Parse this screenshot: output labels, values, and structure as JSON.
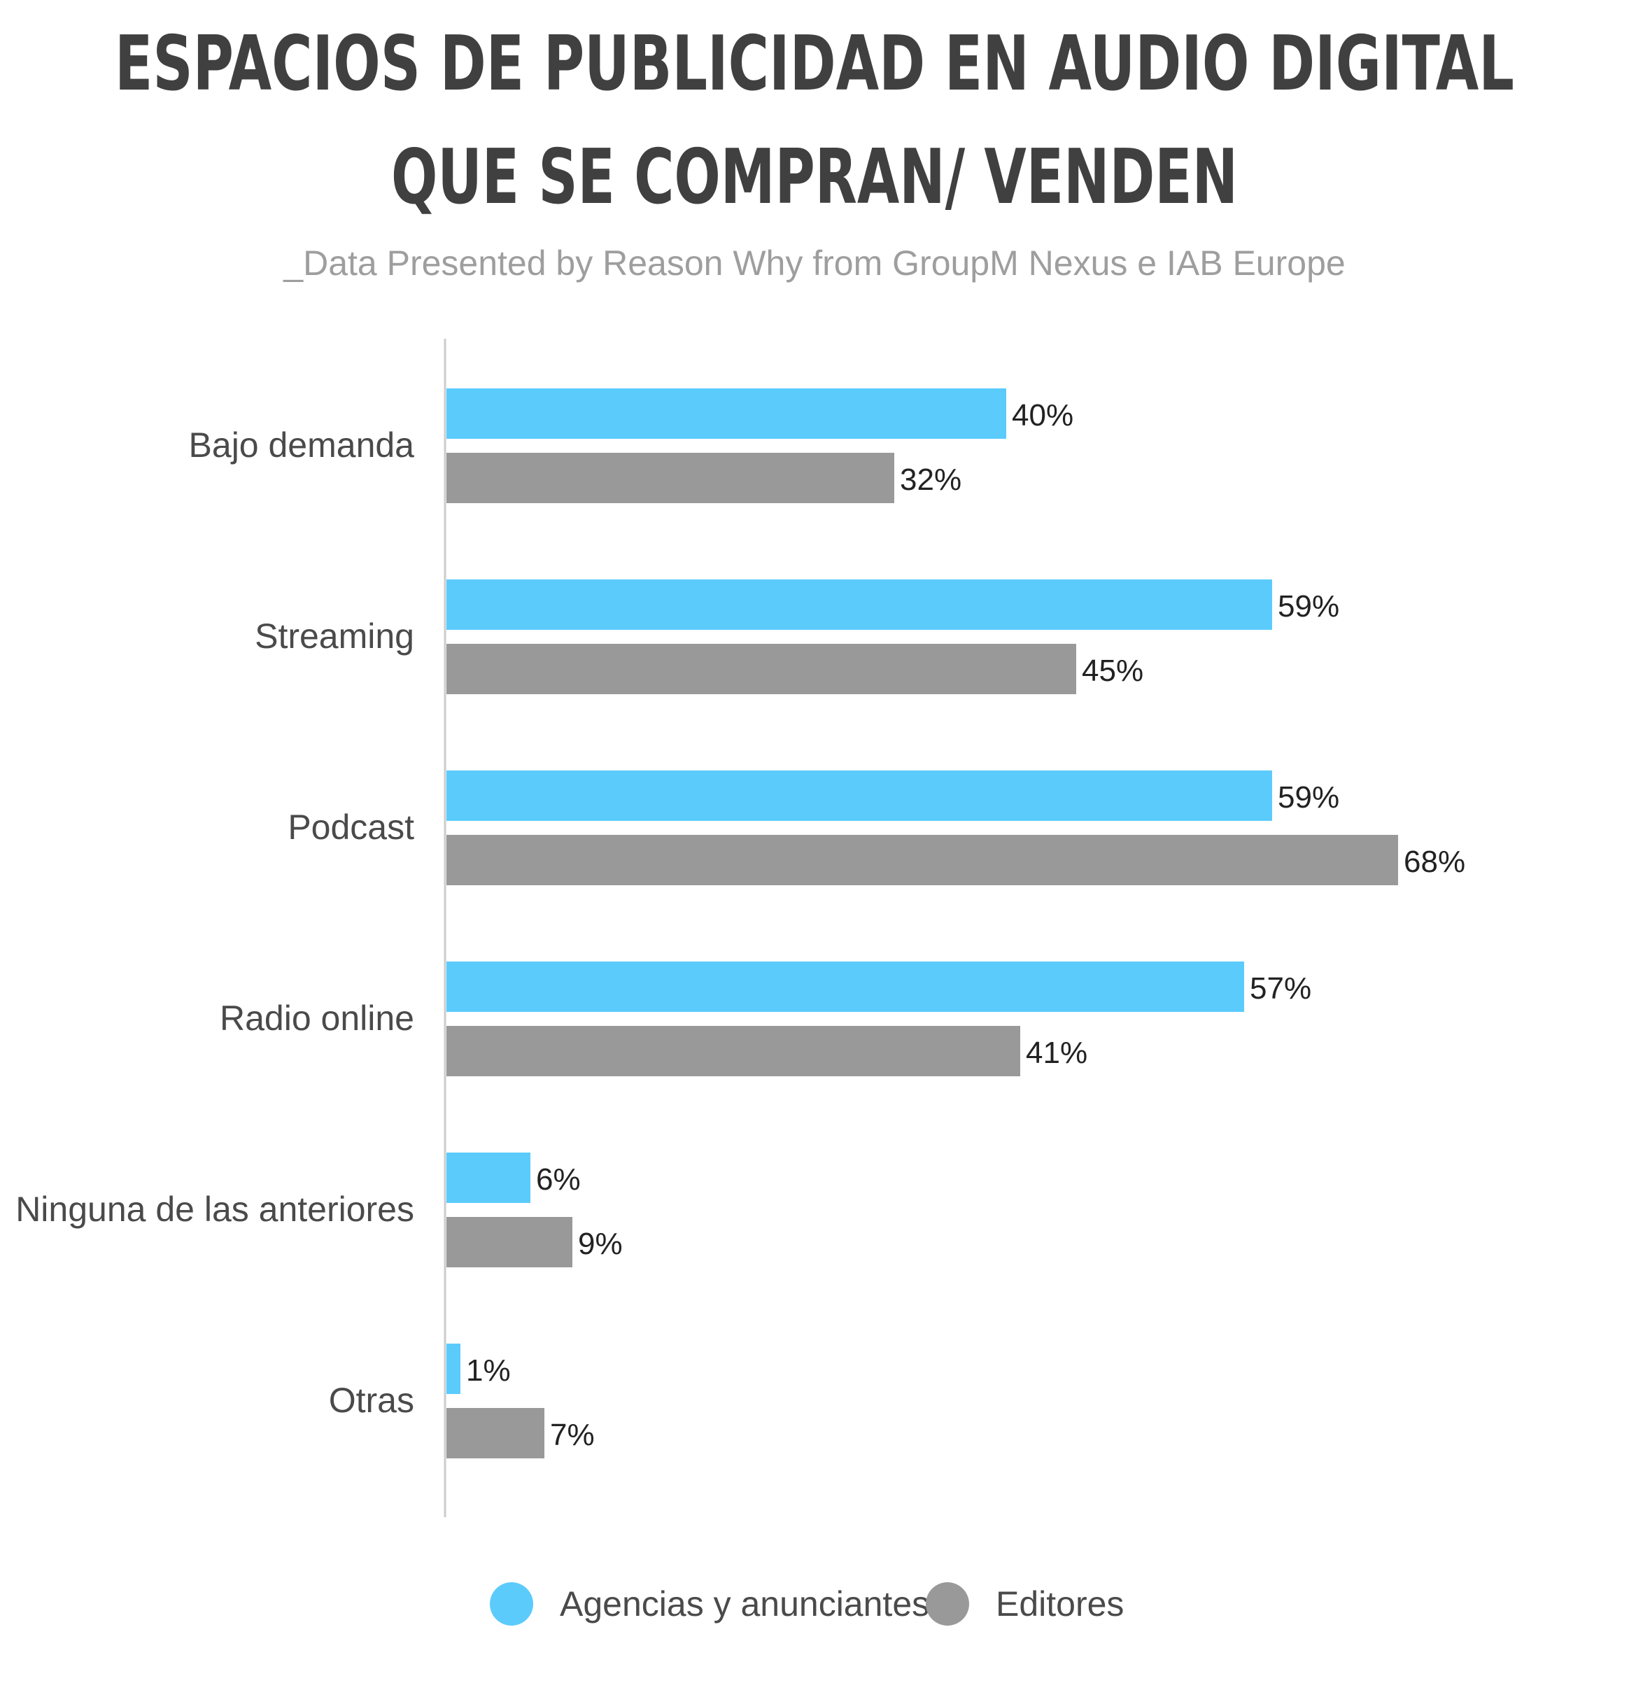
{
  "chart_data": {
    "type": "bar",
    "orientation": "horizontal",
    "title_lines": [
      "ESPACIOS DE PUBLICIDAD EN AUDIO DIGITAL",
      "QUE SE COMPRAN/ VENDEN"
    ],
    "subtitle": "_Data Presented by Reason Why from GroupM Nexus e IAB Europe",
    "categories": [
      "Bajo demanda",
      "Streaming",
      "Podcast",
      "Radio online",
      "Ninguna de las anteriores",
      "Otras"
    ],
    "series": [
      {
        "name": "Agencias y anunciantes",
        "values": [
          40,
          59,
          59,
          57,
          6,
          1
        ],
        "color": "#5bcbfc"
      },
      {
        "name": "Editores",
        "values": [
          32,
          45,
          68,
          41,
          9,
          7
        ],
        "color": "#999999"
      }
    ],
    "value_suffix": "%",
    "xlim": [
      0,
      100
    ],
    "grid": false,
    "legend_position": "bottom"
  }
}
